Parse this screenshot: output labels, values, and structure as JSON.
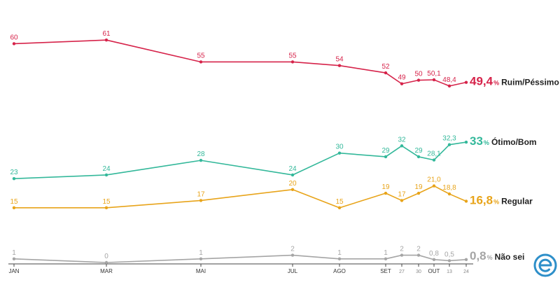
{
  "chart_data": {
    "type": "line",
    "x_axis": {
      "ticks": [
        {
          "label": "JAN",
          "minor": false
        },
        {
          "label": "MAR",
          "minor": false
        },
        {
          "label": "MAI",
          "minor": false
        },
        {
          "label": "JUL",
          "minor": false
        },
        {
          "label": "AGO",
          "minor": false
        },
        {
          "label": "SET",
          "minor": false
        },
        {
          "label": "27",
          "minor": true
        },
        {
          "label": "30",
          "minor": true
        },
        {
          "label": "OUT",
          "minor": false
        },
        {
          "label": "13",
          "minor": true
        },
        {
          "label": "24",
          "minor": true
        }
      ]
    },
    "series": [
      {
        "name": "Ruim/Péssimo",
        "color": "#d6234a",
        "end_value": "49,4",
        "end_unit": "%",
        "points": [
          {
            "label": "60",
            "value": 60
          },
          {
            "label": "61",
            "value": 61
          },
          {
            "label": "55",
            "value": 55
          },
          {
            "label": "55",
            "value": 55
          },
          {
            "label": "54",
            "value": 54
          },
          {
            "label": "52",
            "value": 52
          },
          {
            "label": "49",
            "value": 49
          },
          {
            "label": "50",
            "value": 50
          },
          {
            "label": "50,1",
            "value": 50.1
          },
          {
            "label": "48,4",
            "value": 48.4
          },
          {
            "label": "",
            "value": 49.4
          }
        ]
      },
      {
        "name": "Ótimo/Bom",
        "color": "#33b89a",
        "end_value": "33",
        "end_unit": "%",
        "points": [
          {
            "label": "23",
            "value": 23
          },
          {
            "label": "24",
            "value": 24
          },
          {
            "label": "28",
            "value": 28
          },
          {
            "label": "24",
            "value": 24
          },
          {
            "label": "30",
            "value": 30
          },
          {
            "label": "29",
            "value": 29
          },
          {
            "label": "32",
            "value": 32
          },
          {
            "label": "29",
            "value": 29
          },
          {
            "label": "28,1",
            "value": 28.1
          },
          {
            "label": "32,3",
            "value": 32.3
          },
          {
            "label": "",
            "value": 33
          }
        ]
      },
      {
        "name": "Regular",
        "color": "#e8a41a",
        "end_value": "16,8",
        "end_unit": "%",
        "points": [
          {
            "label": "15",
            "value": 15
          },
          {
            "label": "15",
            "value": 15
          },
          {
            "label": "17",
            "value": 17
          },
          {
            "label": "20",
            "value": 20
          },
          {
            "label": "15",
            "value": 15
          },
          {
            "label": "19",
            "value": 19
          },
          {
            "label": "17",
            "value": 17
          },
          {
            "label": "19",
            "value": 19
          },
          {
            "label": "21,0",
            "value": 21.0
          },
          {
            "label": "18,8",
            "value": 18.8
          },
          {
            "label": "",
            "value": 16.8
          }
        ]
      },
      {
        "name": "Não sei",
        "color": "#a5a5a5",
        "end_value": "0,8",
        "end_unit": "%",
        "points": [
          {
            "label": "1",
            "value": 1
          },
          {
            "label": "0",
            "value": 0
          },
          {
            "label": "1",
            "value": 1
          },
          {
            "label": "2",
            "value": 2
          },
          {
            "label": "1",
            "value": 1
          },
          {
            "label": "1",
            "value": 1
          },
          {
            "label": "2",
            "value": 2
          },
          {
            "label": "2",
            "value": 2
          },
          {
            "label": "0,8",
            "value": 0.8
          },
          {
            "label": "0,5",
            "value": 0.5
          },
          {
            "label": "",
            "value": 0.8
          }
        ]
      }
    ],
    "ylim": [
      0,
      62
    ],
    "grid": false,
    "legend": "end-of-line labels"
  },
  "brand": {
    "icon": "e-logo-icon",
    "color": "#2e8fc9"
  }
}
